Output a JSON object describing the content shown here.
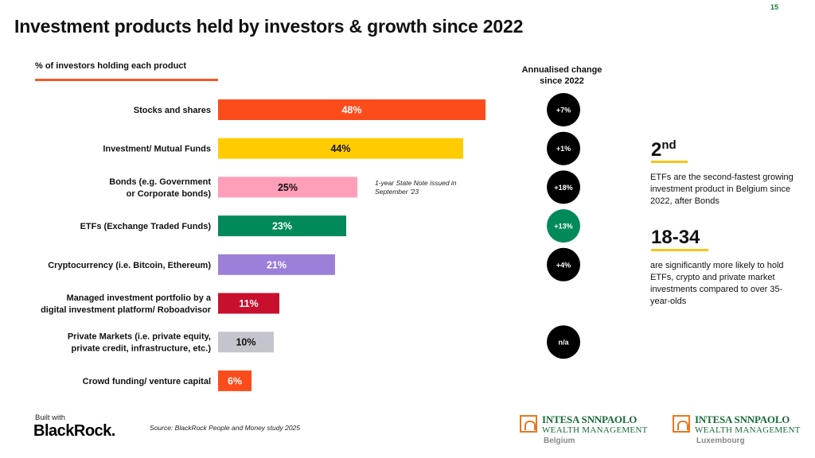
{
  "page_number": "15",
  "title": "Investment products held by investors & growth since 2022",
  "subtitle": "% of investors holding each product",
  "change_header_line1": "Annualised change",
  "change_header_line2": "since 2022",
  "note_line1": "1-year State Note issued in",
  "note_line2": "September '23",
  "chart_data": {
    "type": "bar",
    "orientation": "horizontal",
    "title": "Investment products held by investors & growth since 2022",
    "xlabel": "",
    "ylabel": "",
    "unit": "%",
    "xlim": [
      0,
      50
    ],
    "grid": false,
    "legend": "none",
    "categories": [
      [
        "Stocks and shares"
      ],
      [
        "Investment/ Mutual Funds"
      ],
      [
        "Bonds (e.g. Government",
        "or Corporate bonds)"
      ],
      [
        "ETFs (Exchange Traded Funds)"
      ],
      [
        "Cryptocurrency (i.e. Bitcoin, Ethereum)"
      ],
      [
        "Managed investment portfolio by a",
        "digital investment platform/ Roboadvisor"
      ],
      [
        "Private Markets (i.e. private equity,",
        "private credit, infrastructure, etc.)"
      ],
      [
        "Crowd funding/ venture capital"
      ]
    ],
    "values": [
      48,
      44,
      25,
      23,
      21,
      11,
      10,
      6
    ],
    "value_labels": [
      "48%",
      "44%",
      "25%",
      "23%",
      "21%",
      "11%",
      "10%",
      "6%"
    ],
    "label_colors": [
      "#ffffff",
      "#111111",
      "#111111",
      "#ffffff",
      "#ffffff",
      "#ffffff",
      "#111111",
      "#ffffff"
    ],
    "colors": [
      "#fc4c1c",
      "#ffcc00",
      "#ff9eb8",
      "#008a5a",
      "#9b7fd8",
      "#c8102e",
      "#c4c4cc",
      "#fc4c1c"
    ],
    "annualised_change": [
      "+7%",
      "+1%",
      "+18%",
      "+13%",
      "+4%",
      "",
      "n/a",
      ""
    ],
    "change_colors": [
      "#000000",
      "#000000",
      "#000000",
      "#008a5a",
      "#000000",
      "",
      "#000000",
      ""
    ]
  },
  "stats": {
    "stat1_number": "2",
    "stat1_sup": "nd",
    "stat1_text": "ETFs are the second-fastest growing investment product in Belgium since 2022, after Bonds",
    "stat2_number": "18-34",
    "stat2_text": "are significantly more likely to hold ETFs, crypto and private market investments compared to over 35-year-olds"
  },
  "footer": {
    "built_with": "Built with",
    "brand": "BlackRock.",
    "source": "Source: BlackRock People and Money study 2025"
  },
  "logos": {
    "name": "INTESA SNNPAOLO",
    "sub": "WEALTH MANAGEMENT",
    "country_1": "Belgium",
    "country_2": "Luxembourg",
    "accent_color": "#1a6b3a"
  }
}
